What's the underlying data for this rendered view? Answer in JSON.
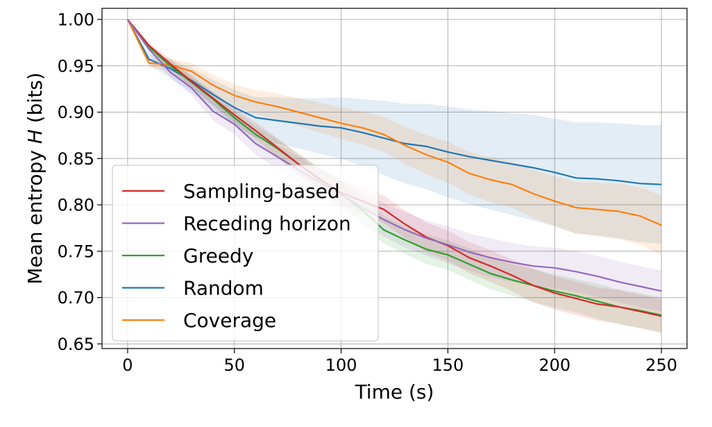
{
  "chart_data": {
    "type": "line",
    "title": "",
    "xlabel": "Time (s)",
    "ylabel_prefix": "Mean entropy ",
    "ylabel_var": "H",
    "ylabel_suffix": " (bits)",
    "xlim": [
      -12,
      262
    ],
    "ylim": [
      0.645,
      1.012
    ],
    "xticks": [
      0,
      50,
      100,
      150,
      200,
      250
    ],
    "xtick_labels": [
      "0",
      "50",
      "100",
      "150",
      "200",
      "250"
    ],
    "yticks": [
      0.65,
      0.7,
      0.75,
      0.8,
      0.85,
      0.9,
      0.95,
      1.0
    ],
    "ytick_labels": [
      "0.65",
      "0.70",
      "0.75",
      "0.80",
      "0.85",
      "0.90",
      "0.95",
      "1.00"
    ],
    "grid": true,
    "legend_position": "bottom-left",
    "x": [
      0,
      10,
      20,
      30,
      40,
      50,
      60,
      70,
      80,
      90,
      100,
      110,
      120,
      130,
      140,
      150,
      160,
      170,
      180,
      190,
      200,
      210,
      220,
      230,
      240,
      250
    ],
    "series": [
      {
        "name": "Random",
        "color": "#1f77b4",
        "values": [
          1.0,
          0.957,
          0.947,
          0.934,
          0.919,
          0.905,
          0.894,
          0.891,
          0.888,
          0.885,
          0.883,
          0.878,
          0.872,
          0.866,
          0.863,
          0.857,
          0.852,
          0.848,
          0.844,
          0.84,
          0.835,
          0.829,
          0.828,
          0.826,
          0.823,
          0.822
        ],
        "band_half_width": [
          0.0,
          0.006,
          0.01,
          0.013,
          0.016,
          0.019,
          0.022,
          0.025,
          0.027,
          0.03,
          0.033,
          0.036,
          0.04,
          0.043,
          0.046,
          0.049,
          0.051,
          0.053,
          0.055,
          0.057,
          0.058,
          0.06,
          0.061,
          0.062,
          0.063,
          0.064
        ]
      },
      {
        "name": "Coverage",
        "color": "#ff7f0e",
        "values": [
          1.0,
          0.953,
          0.951,
          0.944,
          0.929,
          0.918,
          0.911,
          0.906,
          0.9,
          0.894,
          0.888,
          0.883,
          0.876,
          0.864,
          0.854,
          0.846,
          0.834,
          0.827,
          0.822,
          0.812,
          0.804,
          0.797,
          0.795,
          0.793,
          0.788,
          0.778
        ],
        "band_half_width": [
          0.0,
          0.005,
          0.007,
          0.009,
          0.011,
          0.012,
          0.013,
          0.014,
          0.015,
          0.016,
          0.017,
          0.018,
          0.019,
          0.02,
          0.021,
          0.022,
          0.023,
          0.024,
          0.025,
          0.026,
          0.027,
          0.028,
          0.029,
          0.03,
          0.031,
          0.032
        ]
      },
      {
        "name": "Greedy",
        "color": "#2ca02c",
        "values": [
          1.0,
          0.97,
          0.95,
          0.932,
          0.914,
          0.894,
          0.876,
          0.861,
          0.844,
          0.827,
          0.812,
          0.794,
          0.773,
          0.762,
          0.752,
          0.746,
          0.736,
          0.726,
          0.719,
          0.713,
          0.707,
          0.702,
          0.696,
          0.69,
          0.686,
          0.681
        ],
        "band_half_width": [
          0.0,
          0.003,
          0.005,
          0.006,
          0.007,
          0.008,
          0.009,
          0.01,
          0.011,
          0.012,
          0.013,
          0.014,
          0.015,
          0.015,
          0.016,
          0.016,
          0.017,
          0.017,
          0.017,
          0.018,
          0.018,
          0.018,
          0.019,
          0.019,
          0.019,
          0.019
        ]
      },
      {
        "name": "Sampling-based",
        "color": "#d62728",
        "values": [
          1.0,
          0.972,
          0.952,
          0.933,
          0.915,
          0.897,
          0.88,
          0.862,
          0.844,
          0.828,
          0.813,
          0.804,
          0.795,
          0.779,
          0.765,
          0.756,
          0.743,
          0.734,
          0.724,
          0.713,
          0.705,
          0.699,
          0.693,
          0.69,
          0.685,
          0.68
        ],
        "band_half_width": [
          0.0,
          0.003,
          0.005,
          0.006,
          0.007,
          0.008,
          0.009,
          0.01,
          0.011,
          0.012,
          0.013,
          0.014,
          0.015,
          0.015,
          0.016,
          0.016,
          0.017,
          0.017,
          0.017,
          0.018,
          0.018,
          0.018,
          0.018,
          0.018,
          0.018,
          0.018
        ]
      },
      {
        "name": "Receding horizon",
        "color": "#9467bd",
        "values": [
          1.0,
          0.968,
          0.943,
          0.926,
          0.901,
          0.887,
          0.866,
          0.852,
          0.838,
          0.824,
          0.811,
          0.797,
          0.784,
          0.773,
          0.764,
          0.757,
          0.749,
          0.743,
          0.738,
          0.734,
          0.732,
          0.728,
          0.723,
          0.717,
          0.712,
          0.707
        ],
        "band_half_width": [
          0.0,
          0.004,
          0.006,
          0.008,
          0.01,
          0.011,
          0.012,
          0.013,
          0.014,
          0.015,
          0.016,
          0.017,
          0.018,
          0.019,
          0.019,
          0.02,
          0.02,
          0.021,
          0.021,
          0.021,
          0.022,
          0.022,
          0.022,
          0.022,
          0.022,
          0.022
        ]
      }
    ],
    "legend_order": [
      "Sampling-based",
      "Receding horizon",
      "Greedy",
      "Random",
      "Coverage"
    ]
  }
}
